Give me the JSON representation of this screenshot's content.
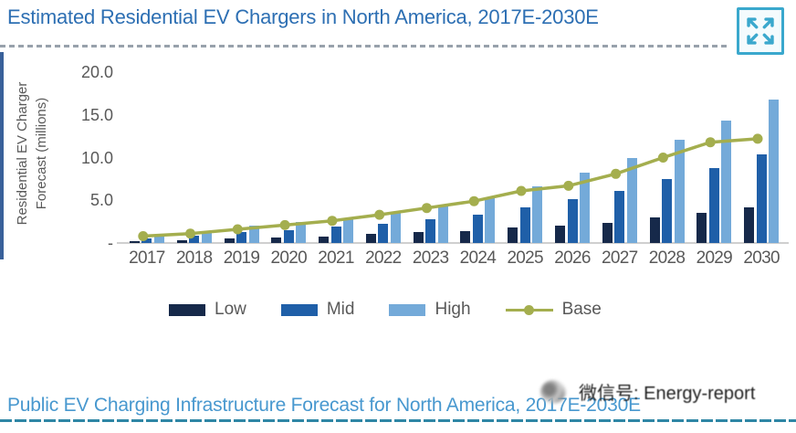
{
  "header": {
    "title": "Estimated Residential EV Chargers in North America, 2017E-2030E",
    "expand_icon": "expand-arrows-icon"
  },
  "chart_data": {
    "type": "bar",
    "title": "Estimated Residential EV Chargers in North America, 2017E-2030E",
    "ylabel": "Residential EV Charger Forecast (millions)",
    "ylabel_lines": [
      "Residential EV Charger",
      "Forecast (millions)"
    ],
    "xlabel": "",
    "categories": [
      "2017",
      "2018",
      "2019",
      "2020",
      "2021",
      "2022",
      "2023",
      "2024",
      "2025",
      "2026",
      "2027",
      "2028",
      "2029",
      "2030"
    ],
    "series": [
      {
        "name": "Low",
        "type": "bar",
        "color": "#16294a",
        "values": [
          0.2,
          0.3,
          0.5,
          0.6,
          0.8,
          1.1,
          1.3,
          1.4,
          1.8,
          2.0,
          2.4,
          3.0,
          3.5,
          4.2
        ]
      },
      {
        "name": "Mid",
        "type": "bar",
        "color": "#1f5fa8",
        "values": [
          0.5,
          0.9,
          1.3,
          1.5,
          1.9,
          2.3,
          2.8,
          3.3,
          4.2,
          5.1,
          6.1,
          7.5,
          8.8,
          10.4
        ]
      },
      {
        "name": "High",
        "type": "bar",
        "color": "#74aad9",
        "values": [
          1.0,
          1.4,
          2.0,
          2.5,
          2.9,
          3.5,
          4.3,
          5.3,
          6.6,
          8.2,
          10.0,
          12.1,
          14.3,
          16.8
        ]
      },
      {
        "name": "Base",
        "type": "line",
        "color": "#a4ae4e",
        "values": [
          0.8,
          1.1,
          1.6,
          2.1,
          2.6,
          3.3,
          4.1,
          4.9,
          6.1,
          6.7,
          8.1,
          10.0,
          11.8,
          12.2
        ]
      }
    ],
    "y_axis": {
      "ticks": [
        {
          "label": "20.0",
          "value": 20
        },
        {
          "label": "15.0",
          "value": 15
        },
        {
          "label": "10.0",
          "value": 10
        },
        {
          "label": "5.0",
          "value": 5
        },
        {
          "label": "-",
          "value": 0
        }
      ],
      "range": [
        0,
        21.5
      ]
    },
    "grid": false,
    "legend_position": "bottom",
    "legend": [
      "Low",
      "Mid",
      "High",
      "Base"
    ]
  },
  "footer": {
    "title": "Public EV Charging Infrastructure Forecast for North America, 2017E-2030E"
  },
  "watermark": {
    "text": "微信号: Energy-report"
  },
  "colors": {
    "title_blue": "#2d6fb3",
    "footer_blue": "#4898cf",
    "footer_rule_teal": "#2f86a5",
    "header_rule_gray": "#98a1ab",
    "axis_text_gray": "#595959",
    "expand_icon_teal": "#3aa8cd",
    "low_bar": "#16294a",
    "mid_bar": "#1f5fa8",
    "high_bar": "#74aad9",
    "base_line": "#a4ae4e"
  }
}
